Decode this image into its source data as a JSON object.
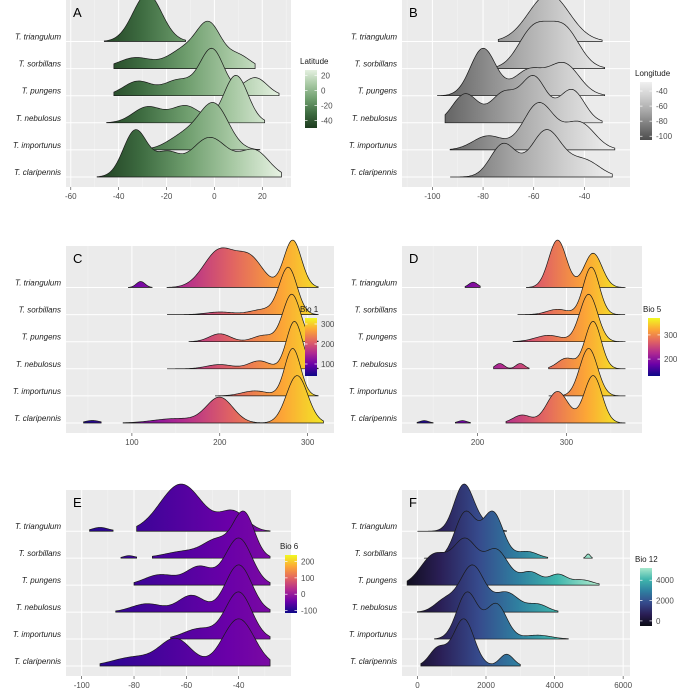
{
  "species": [
    "T. triangulum",
    "T. sorbillans",
    "T. pungens",
    "T. nebulosus",
    "T. importunus",
    "T. claripennis"
  ],
  "chart_data": [
    {
      "type": "ridgeline",
      "label": "A",
      "legend_title": "Latitude",
      "xlim": [
        -62,
        32
      ],
      "x_ticks": [
        -60,
        -40,
        -20,
        0,
        20
      ],
      "color_range": [
        -50,
        27
      ],
      "colormap": [
        "#1d3b1f",
        "#3d6b40",
        "#6f9e6e",
        "#a8c9a4",
        "#e4f0e0"
      ],
      "legend_ticks": [
        20,
        0,
        -20,
        -40
      ],
      "ridges": [
        {
          "name": "T. triangulum",
          "range": [
            -46,
            -12
          ],
          "peaks": [
            [
              -28,
              1.0,
              6
            ]
          ]
        },
        {
          "name": "T. sorbillans",
          "range": [
            -42,
            17
          ],
          "peaks": [
            [
              -33,
              0.25,
              7
            ],
            [
              -12,
              0.45,
              7
            ],
            [
              -2,
              0.9,
              5
            ],
            [
              10,
              0.3,
              5
            ]
          ]
        },
        {
          "name": "T. pungens",
          "range": [
            -42,
            27
          ],
          "peaks": [
            [
              -32,
              0.28,
              6
            ],
            [
              -15,
              0.3,
              6
            ],
            [
              -1,
              0.9,
              5
            ],
            [
              17,
              0.35,
              5
            ]
          ]
        },
        {
          "name": "T. nebulosus",
          "range": [
            -45,
            21
          ],
          "peaks": [
            [
              -28,
              0.3,
              6
            ],
            [
              -12,
              0.32,
              6
            ],
            [
              9,
              0.9,
              5
            ]
          ]
        },
        {
          "name": "T. importunus",
          "range": [
            -33,
            19
          ],
          "peaks": [
            [
              -12,
              0.35,
              7
            ],
            [
              0,
              1.0,
              6
            ]
          ]
        },
        {
          "name": "T. claripennis",
          "range": [
            -49,
            28
          ],
          "peaks": [
            [
              -33,
              0.65,
              5
            ],
            [
              -20,
              0.3,
              5
            ],
            [
              -2,
              0.55,
              8
            ],
            [
              17,
              0.35,
              6
            ]
          ]
        }
      ]
    },
    {
      "type": "ridgeline",
      "label": "B",
      "legend_title": "Longitude",
      "xlim": [
        -112,
        -22
      ],
      "x_ticks": [
        -100,
        -80,
        -60,
        -40
      ],
      "color_range": [
        -105,
        -28
      ],
      "colormap": [
        "#4d4d4d",
        "#7a7a7a",
        "#a8a8a8",
        "#cfcfcf",
        "#f0f0f0"
      ],
      "legend_ticks": [
        -40,
        -60,
        -80,
        -100
      ],
      "ridges": [
        {
          "name": "T. triangulum",
          "range": [
            -74,
            -33
          ],
          "peaks": [
            [
              -54,
              1.0,
              8
            ]
          ]
        },
        {
          "name": "T. sorbillans",
          "range": [
            -80,
            -32
          ],
          "peaks": [
            [
              -60,
              0.45,
              6
            ],
            [
              -48,
              0.45,
              6
            ]
          ]
        },
        {
          "name": "T. pungens",
          "range": [
            -98,
            -32
          ],
          "peaks": [
            [
              -80,
              0.75,
              5
            ],
            [
              -62,
              0.4,
              6
            ],
            [
              -48,
              0.5,
              6
            ]
          ]
        },
        {
          "name": "T. nebulosus",
          "range": [
            -95,
            -33
          ],
          "peaks": [
            [
              -87,
              0.35,
              5
            ],
            [
              -72,
              0.35,
              5
            ],
            [
              -60,
              0.55,
              5
            ],
            [
              -45,
              0.4,
              5
            ]
          ]
        },
        {
          "name": "T. importunus",
          "range": [
            -93,
            -28
          ],
          "peaks": [
            [
              -78,
              0.18,
              6
            ],
            [
              -58,
              0.6,
              6
            ],
            [
              -42,
              0.35,
              6
            ]
          ]
        },
        {
          "name": "T. claripennis",
          "range": [
            -93,
            -29
          ],
          "peaks": [
            [
              -72,
              0.6,
              5
            ],
            [
              -55,
              0.85,
              6
            ],
            [
              -40,
              0.3,
              6
            ]
          ]
        }
      ]
    },
    {
      "type": "ridgeline",
      "label": "C",
      "legend_title": "Bio 1",
      "xlim": [
        25,
        330
      ],
      "x_ticks": [
        100,
        200,
        300
      ],
      "color_range": [
        40,
        330
      ],
      "colormap": [
        "#0d0887",
        "#6a00a8",
        "#b12a90",
        "#e16462",
        "#fca636",
        "#f0f921"
      ],
      "legend_ticks": [
        300,
        200,
        100
      ],
      "ridges": [
        {
          "name": "T. triangulum",
          "segments": [
            [
              96,
              123
            ],
            [
              140,
              312
            ]
          ],
          "peaks": [
            [
              110,
              0.12,
              5
            ],
            [
              200,
              0.75,
              18
            ],
            [
              235,
              0.55,
              15
            ],
            [
              283,
              0.95,
              10
            ]
          ]
        },
        {
          "name": "T. sorbillans",
          "range": [
            140,
            312
          ],
          "peaks": [
            [
              200,
              0.05,
              15
            ],
            [
              250,
              0.1,
              15
            ],
            [
              278,
              0.9,
              10
            ]
          ]
        },
        {
          "name": "T. pungens",
          "range": [
            165,
            312
          ],
          "peaks": [
            [
              200,
              0.15,
              12
            ],
            [
              250,
              0.12,
              12
            ],
            [
              282,
              0.9,
              10
            ]
          ]
        },
        {
          "name": "T. nebulosus",
          "range": [
            140,
            312
          ],
          "peaks": [
            [
              200,
              0.08,
              15
            ],
            [
              245,
              0.15,
              12
            ],
            [
              285,
              0.9,
              9
            ]
          ]
        },
        {
          "name": "T. importunus",
          "range": [
            195,
            312
          ],
          "peaks": [
            [
              240,
              0.1,
              15
            ],
            [
              283,
              0.95,
              9
            ]
          ]
        },
        {
          "name": "T. claripennis",
          "segments": [
            [
              45,
              65
            ],
            [
              90,
              318
            ]
          ],
          "peaks": [
            [
              55,
              0.04,
              8
            ],
            [
              150,
              0.07,
              25
            ],
            [
              200,
              0.4,
              15
            ],
            [
              288,
              0.75,
              12
            ]
          ]
        }
      ]
    },
    {
      "type": "ridgeline",
      "label": "D",
      "legend_title": "Bio 5",
      "xlim": [
        115,
        385
      ],
      "x_ticks": [
        200,
        300
      ],
      "color_range": [
        130,
        370
      ],
      "colormap": [
        "#0d0887",
        "#6a00a8",
        "#b12a90",
        "#e16462",
        "#fca636",
        "#f0f921"
      ],
      "legend_ticks": [
        300,
        200
      ],
      "ridges": [
        {
          "name": "T. triangulum",
          "segments": [
            [
              186,
              203
            ],
            [
              255,
              366
            ]
          ],
          "peaks": [
            [
              195,
              0.1,
              5
            ],
            [
              290,
              0.9,
              10
            ],
            [
              330,
              0.65,
              10
            ]
          ]
        },
        {
          "name": "T. sorbillans",
          "range": [
            245,
            366
          ],
          "peaks": [
            [
              290,
              0.1,
              12
            ],
            [
              328,
              0.9,
              9
            ]
          ]
        },
        {
          "name": "T. pungens",
          "range": [
            240,
            366
          ],
          "peaks": [
            [
              280,
              0.12,
              15
            ],
            [
              325,
              0.9,
              10
            ]
          ]
        },
        {
          "name": "T. nebulosus",
          "segments": [
            [
              218,
              258
            ],
            [
              280,
              366
            ]
          ],
          "peaks": [
            [
              225,
              0.1,
              5
            ],
            [
              248,
              0.1,
              5
            ],
            [
              300,
              0.2,
              10
            ],
            [
              330,
              0.9,
              9
            ]
          ]
        },
        {
          "name": "T. importunus",
          "range": [
            280,
            366
          ],
          "peaks": [
            [
              325,
              0.95,
              10
            ]
          ]
        },
        {
          "name": "T. claripennis",
          "segments": [
            [
              132,
              150
            ],
            [
              175,
              192
            ],
            [
              232,
              366
            ]
          ],
          "peaks": [
            [
              140,
              0.03,
              5
            ],
            [
              183,
              0.03,
              5
            ],
            [
              250,
              0.1,
              10
            ],
            [
              290,
              0.4,
              12
            ],
            [
              330,
              0.6,
              10
            ]
          ]
        }
      ]
    },
    {
      "type": "ridgeline",
      "label": "E",
      "legend_title": "Bio 6",
      "xlim": [
        -106,
        -20
      ],
      "x_ticks": [
        -100,
        -80,
        -60,
        -40
      ],
      "color_range": [
        -115,
        240
      ],
      "colormap": [
        "#0d0887",
        "#6a00a8",
        "#b12a90",
        "#e16462",
        "#fca636",
        "#f0f921"
      ],
      "legend_ticks": [
        200,
        100,
        0,
        -100
      ],
      "ridges": [
        {
          "name": "T. triangulum",
          "segments": [
            [
              -97,
              -88
            ],
            [
              -79,
              -28
            ]
          ],
          "peaks": [
            [
              -93,
              0.08,
              3
            ],
            [
              -62,
              1.0,
              8
            ],
            [
              -42,
              0.4,
              5
            ]
          ]
        },
        {
          "name": "T. sorbillans",
          "segments": [
            [
              -85,
              -79
            ],
            [
              -73,
              -28
            ]
          ],
          "peaks": [
            [
              -82,
              0.05,
              2
            ],
            [
              -60,
              0.15,
              8
            ],
            [
              -48,
              0.35,
              5
            ],
            [
              -38,
              0.95,
              4
            ]
          ]
        },
        {
          "name": "T. pungens",
          "range": [
            -80,
            -28
          ],
          "peaks": [
            [
              -70,
              0.2,
              6
            ],
            [
              -55,
              0.35,
              5
            ],
            [
              -40,
              0.9,
              5
            ]
          ]
        },
        {
          "name": "T. nebulosus",
          "range": [
            -87,
            -28
          ],
          "peaks": [
            [
              -75,
              0.15,
              6
            ],
            [
              -58,
              0.3,
              5
            ],
            [
              -40,
              0.85,
              5
            ]
          ]
        },
        {
          "name": "T. importunus",
          "range": [
            -66,
            -28
          ],
          "peaks": [
            [
              -55,
              0.2,
              6
            ],
            [
              -40,
              0.9,
              5
            ]
          ]
        },
        {
          "name": "T. claripennis",
          "range": [
            -93,
            -28
          ],
          "peaks": [
            [
              -80,
              0.15,
              8
            ],
            [
              -64,
              0.45,
              6
            ],
            [
              -40,
              0.8,
              6
            ]
          ]
        }
      ]
    },
    {
      "type": "ridgeline",
      "label": "F",
      "legend_title": "Bio 12",
      "xlim": [
        -450,
        6200
      ],
      "x_ticks": [
        0,
        2000,
        4000,
        6000
      ],
      "color_range": [
        -500,
        5200
      ],
      "colormap": [
        "#0b0b14",
        "#2a1e55",
        "#364a8c",
        "#2f7fa0",
        "#3fb5ac",
        "#a8e8cc"
      ],
      "legend_ticks": [
        4000,
        2000,
        0
      ],
      "ridges": [
        {
          "name": "T. triangulum",
          "range": [
            0,
            2600
          ],
          "peaks": [
            [
              1350,
              1.0,
              280
            ],
            [
              1900,
              0.15,
              300
            ]
          ]
        },
        {
          "name": "T. sorbillans",
          "segments": [
            [
              200,
              3800
            ],
            [
              4850,
              5100
            ]
          ],
          "peaks": [
            [
              1400,
              0.55,
              300
            ],
            [
              2200,
              0.55,
              300
            ],
            [
              3200,
              0.08,
              300
            ],
            [
              4980,
              0.05,
              60
            ]
          ]
        },
        {
          "name": "T. pungens",
          "range": [
            -300,
            5300
          ],
          "peaks": [
            [
              500,
              0.35,
              400
            ],
            [
              1400,
              0.5,
              350
            ],
            [
              2300,
              0.4,
              350
            ],
            [
              3300,
              0.15,
              300
            ],
            [
              4100,
              0.12,
              250
            ],
            [
              4800,
              0.06,
              300
            ]
          ]
        },
        {
          "name": "T. nebulosus",
          "range": [
            0,
            4100
          ],
          "peaks": [
            [
              800,
              0.15,
              300
            ],
            [
              1600,
              0.6,
              350
            ],
            [
              2600,
              0.25,
              350
            ],
            [
              3500,
              0.1,
              300
            ]
          ]
        },
        {
          "name": "T. importunus",
          "range": [
            500,
            4400
          ],
          "peaks": [
            [
              1450,
              0.6,
              300
            ],
            [
              2300,
              0.45,
              300
            ],
            [
              3500,
              0.05,
              400
            ]
          ]
        },
        {
          "name": "T. claripennis",
          "range": [
            100,
            3000
          ],
          "peaks": [
            [
              600,
              0.3,
              250
            ],
            [
              1350,
              0.8,
              300
            ],
            [
              2600,
              0.2,
              200
            ]
          ]
        }
      ]
    }
  ]
}
